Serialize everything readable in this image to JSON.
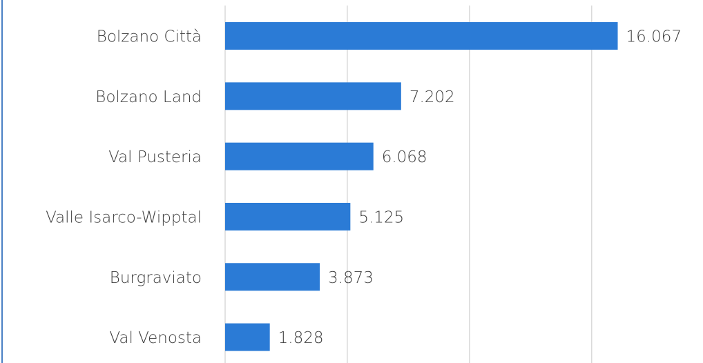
{
  "chart_data": {
    "type": "barh",
    "categories": [
      "Bolzano Città",
      "Bolzano Land",
      "Val Pusteria",
      "Valle Isarco-Wipptal",
      "Burgraviato",
      "Val Venosta"
    ],
    "values": [
      16067,
      7202,
      6068,
      5125,
      3873,
      1828
    ],
    "value_labels": [
      "16.067",
      "7.202",
      "6.068",
      "5.125",
      "3.873",
      "1.828"
    ],
    "color": "#2b7bd6",
    "xlim": [
      0,
      19500
    ],
    "xticks": [
      0,
      5000,
      10000,
      15000
    ],
    "grid": true
  }
}
